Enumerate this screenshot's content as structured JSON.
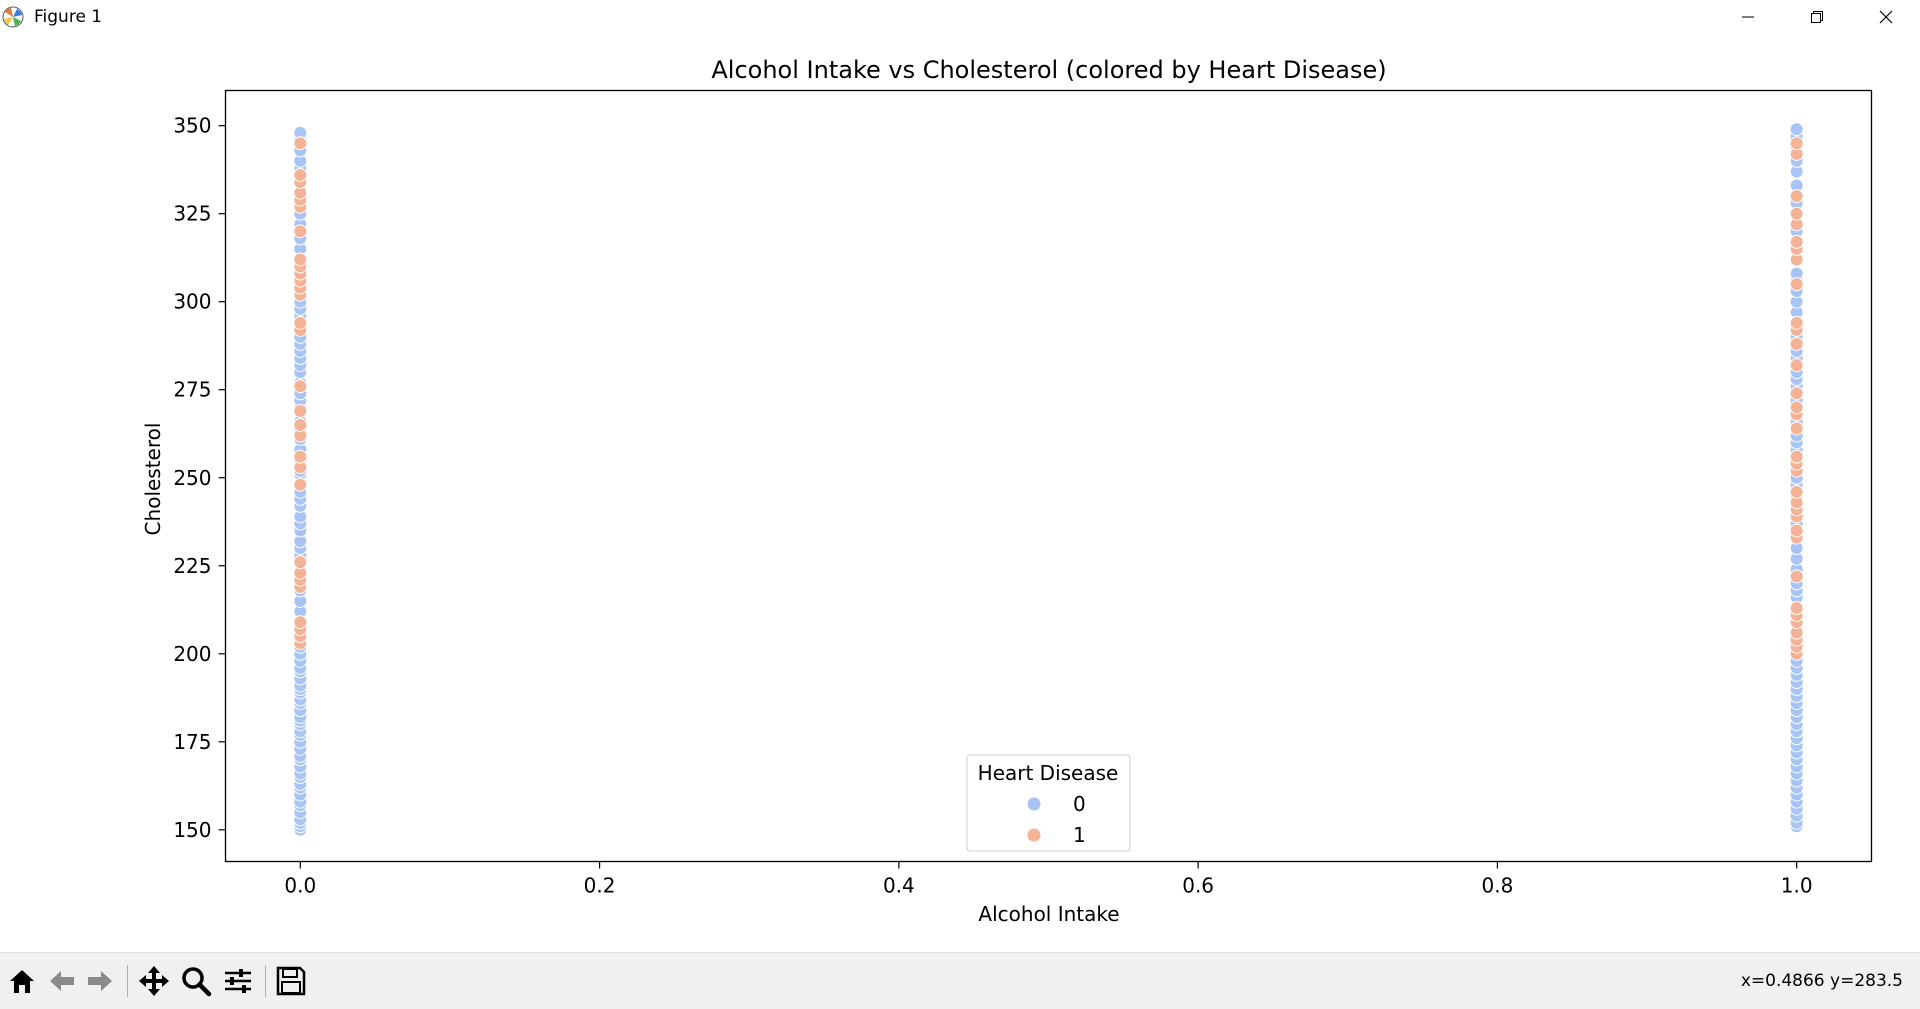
{
  "window": {
    "title": "Figure 1"
  },
  "toolbar": {
    "buttons": [
      "home-icon",
      "back-icon",
      "forward-icon",
      "pan-icon",
      "zoom-icon",
      "configure-icon",
      "save-icon"
    ],
    "coords": "x=0.4866 y=283.5"
  },
  "chart_data": {
    "type": "scatter",
    "title": "Alcohol Intake vs Cholesterol (colored by Heart Disease)",
    "xlabel": "Alcohol Intake",
    "ylabel": "Cholesterol",
    "xlim": [
      -0.05,
      1.05
    ],
    "ylim": [
      141,
      360
    ],
    "xticks": [
      0.0,
      0.2,
      0.4,
      0.6,
      0.8,
      1.0
    ],
    "xtick_labels": [
      "0.0",
      "0.2",
      "0.4",
      "0.6",
      "0.8",
      "1.0"
    ],
    "yticks": [
      150,
      175,
      200,
      225,
      250,
      275,
      300,
      325,
      350
    ],
    "yticks_labels": [
      "150",
      "175",
      "200",
      "225",
      "250",
      "275",
      "300",
      "325",
      "350"
    ],
    "legend": {
      "title": "Heart Disease",
      "location": "lower center",
      "entries": [
        "0",
        "1"
      ]
    },
    "colors": {
      "0": "#a8c4f5",
      "1": "#f4b396"
    },
    "series": [
      {
        "name": "0",
        "x": 0.0,
        "y": [
          150,
          151,
          152,
          153,
          155,
          157,
          158,
          160,
          162,
          163,
          165,
          166,
          168,
          170,
          171,
          173,
          175,
          177,
          178,
          180,
          181,
          182,
          184,
          186,
          187,
          189,
          190,
          191,
          193,
          195,
          196,
          198,
          200,
          202,
          212,
          215,
          218,
          228,
          230,
          232,
          235,
          237,
          239,
          242,
          244,
          246,
          251,
          252,
          255,
          258,
          261,
          263,
          266,
          270,
          272,
          274,
          277,
          280,
          282,
          284,
          286,
          288,
          290,
          296,
          298,
          300,
          315,
          318,
          322,
          325,
          338,
          340,
          343,
          346,
          348
        ]
      },
      {
        "name": "1",
        "x": 0.0,
        "y": [
          203,
          205,
          207,
          209,
          219,
          221,
          223,
          226,
          248,
          253,
          256,
          262,
          265,
          269,
          276,
          292,
          294,
          302,
          304,
          306,
          308,
          310,
          312,
          320,
          327,
          329,
          331,
          334,
          336,
          345
        ]
      },
      {
        "name": "0",
        "x": 1.0,
        "y": [
          151,
          152,
          154,
          156,
          158,
          160,
          162,
          164,
          166,
          168,
          170,
          172,
          174,
          176,
          178,
          180,
          182,
          184,
          186,
          188,
          190,
          192,
          194,
          196,
          198,
          216,
          218,
          220,
          224,
          227,
          230,
          237,
          245,
          248,
          250,
          258,
          260,
          262,
          266,
          272,
          276,
          278,
          280,
          284,
          286,
          290,
          297,
          300,
          303,
          306,
          308,
          320,
          328,
          333,
          337,
          340,
          344,
          347,
          349
        ]
      },
      {
        "name": "1",
        "x": 1.0,
        "y": [
          200,
          202,
          204,
          206,
          209,
          211,
          213,
          222,
          233,
          235,
          239,
          241,
          243,
          246,
          252,
          254,
          256,
          264,
          268,
          270,
          274,
          282,
          288,
          292,
          294,
          305,
          312,
          315,
          317,
          322,
          325,
          330,
          342,
          345
        ]
      }
    ]
  }
}
